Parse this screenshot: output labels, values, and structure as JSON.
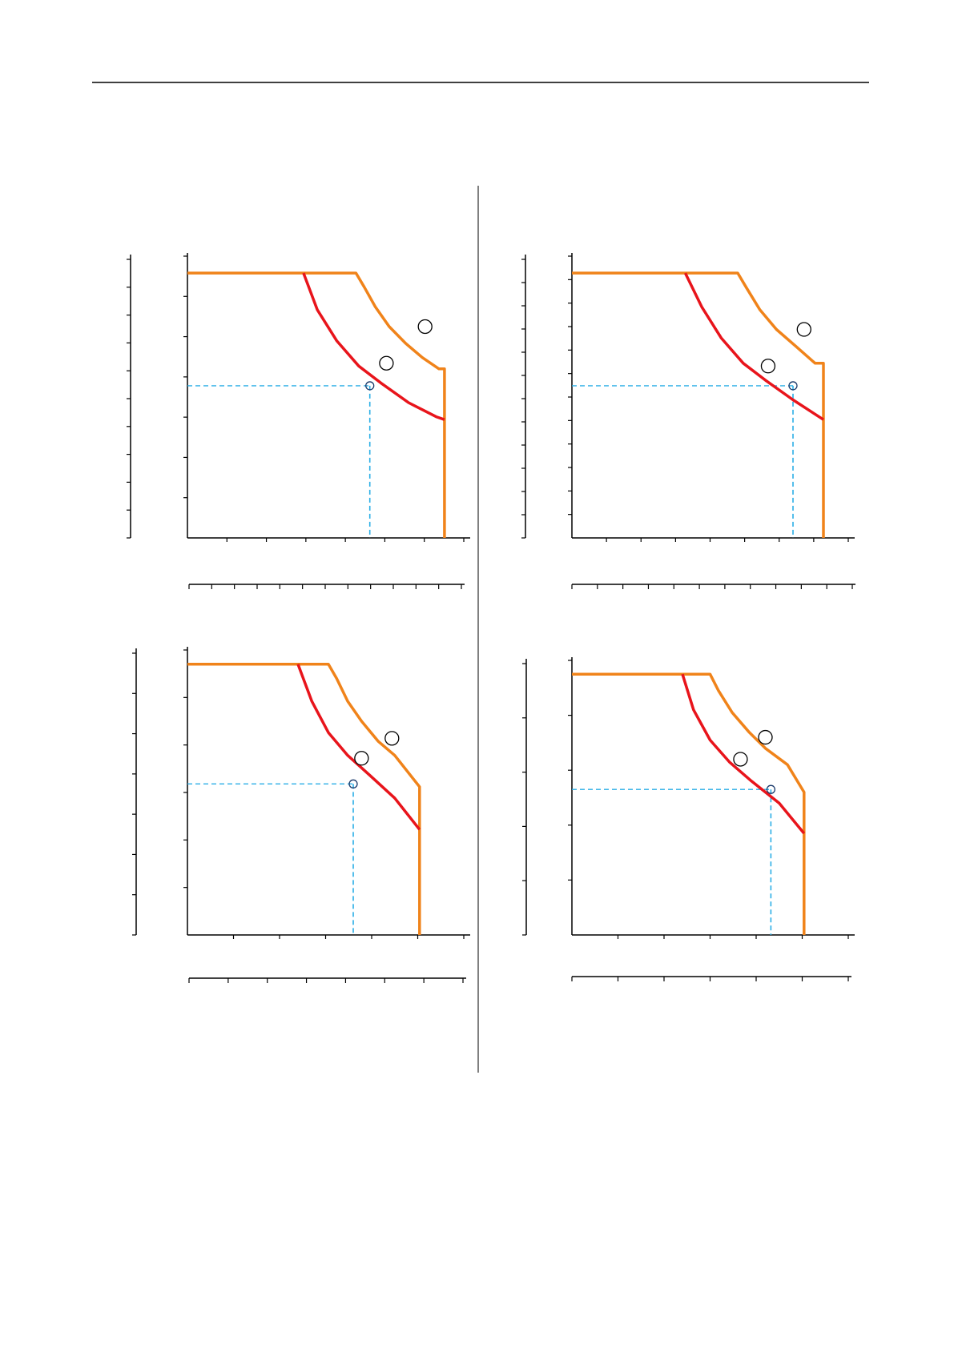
{
  "page": {
    "title": ""
  },
  "colors": {
    "outer_curve": "#f0831a",
    "inner_curve": "#e8141b",
    "guide": "#2aaee6",
    "axis": "#000000",
    "marker": "#000000"
  },
  "chart_data": [
    {
      "type": "line",
      "title": "",
      "xlim": [
        0,
        100
      ],
      "ylim": [
        0,
        100
      ],
      "x_ticks": 7,
      "y_ticks": 7,
      "aux_x_ticks": 12,
      "aux_y_ticks": 10,
      "series": [
        {
          "color": "outer",
          "x": [
            0,
            61,
            64,
            68,
            73,
            79,
            85,
            91,
            93,
            93
          ],
          "y": [
            94,
            94,
            89,
            82,
            75,
            69,
            64,
            60,
            60,
            0
          ]
        },
        {
          "color": "inner",
          "x": [
            42,
            47,
            54,
            62,
            70,
            80,
            90,
            93
          ],
          "y": [
            94,
            81,
            70,
            61,
            55,
            48,
            43,
            42
          ]
        }
      ],
      "guide_point": [
        66,
        54
      ],
      "markers": [
        [
          72,
          62
        ],
        [
          86,
          75
        ]
      ]
    },
    {
      "type": "line",
      "title": "",
      "xlim": [
        0,
        100
      ],
      "ylim": [
        0,
        100
      ],
      "x_ticks": 8,
      "y_ticks": 12,
      "aux_x_ticks": 11,
      "aux_y_ticks": 12,
      "series": [
        {
          "color": "outer",
          "x": [
            0,
            60,
            63,
            68,
            74,
            81,
            88,
            91,
            91
          ],
          "y": [
            94,
            94,
            89,
            81,
            74,
            68,
            62,
            62,
            0
          ]
        },
        {
          "color": "inner",
          "x": [
            41,
            47,
            54,
            62,
            70,
            80,
            91
          ],
          "y": [
            94,
            82,
            71,
            62,
            56,
            49,
            42
          ]
        }
      ],
      "guide_point": [
        80,
        54
      ],
      "markers": [
        [
          71,
          61
        ],
        [
          84,
          74
        ]
      ]
    },
    {
      "type": "line",
      "title": "",
      "xlim": [
        0,
        100
      ],
      "ylim": [
        0,
        100
      ],
      "x_ticks": 6,
      "y_ticks": 6,
      "aux_x_ticks": 7,
      "aux_y_ticks": 7,
      "series": [
        {
          "color": "outer",
          "x": [
            0,
            51,
            54,
            58,
            63,
            69,
            75,
            84,
            84
          ],
          "y": [
            95,
            95,
            90,
            82,
            75,
            68,
            63,
            52,
            0
          ]
        },
        {
          "color": "inner",
          "x": [
            40,
            45,
            51,
            58,
            66,
            75,
            84
          ],
          "y": [
            95,
            82,
            71,
            63,
            56,
            48,
            37
          ]
        }
      ],
      "guide_point": [
        60,
        53
      ],
      "markers": [
        [
          63,
          62
        ],
        [
          74,
          69
        ]
      ]
    },
    {
      "type": "line",
      "title": "",
      "xlim": [
        0,
        100
      ],
      "ylim": [
        0,
        100
      ],
      "x_ticks": 6,
      "y_ticks": 5,
      "aux_x_ticks": 6,
      "aux_y_ticks": 5,
      "series": [
        {
          "color": "outer",
          "x": [
            0,
            50,
            53,
            58,
            64,
            70,
            78,
            84,
            84
          ],
          "y": [
            95,
            95,
            89,
            81,
            74,
            68,
            62,
            52,
            0
          ]
        },
        {
          "color": "inner",
          "x": [
            40,
            44,
            50,
            57,
            65,
            75,
            84
          ],
          "y": [
            95,
            82,
            71,
            63,
            56,
            48,
            37
          ]
        }
      ],
      "guide_point": [
        72,
        53
      ],
      "markers": [
        [
          61,
          64
        ],
        [
          70,
          72
        ]
      ]
    }
  ]
}
